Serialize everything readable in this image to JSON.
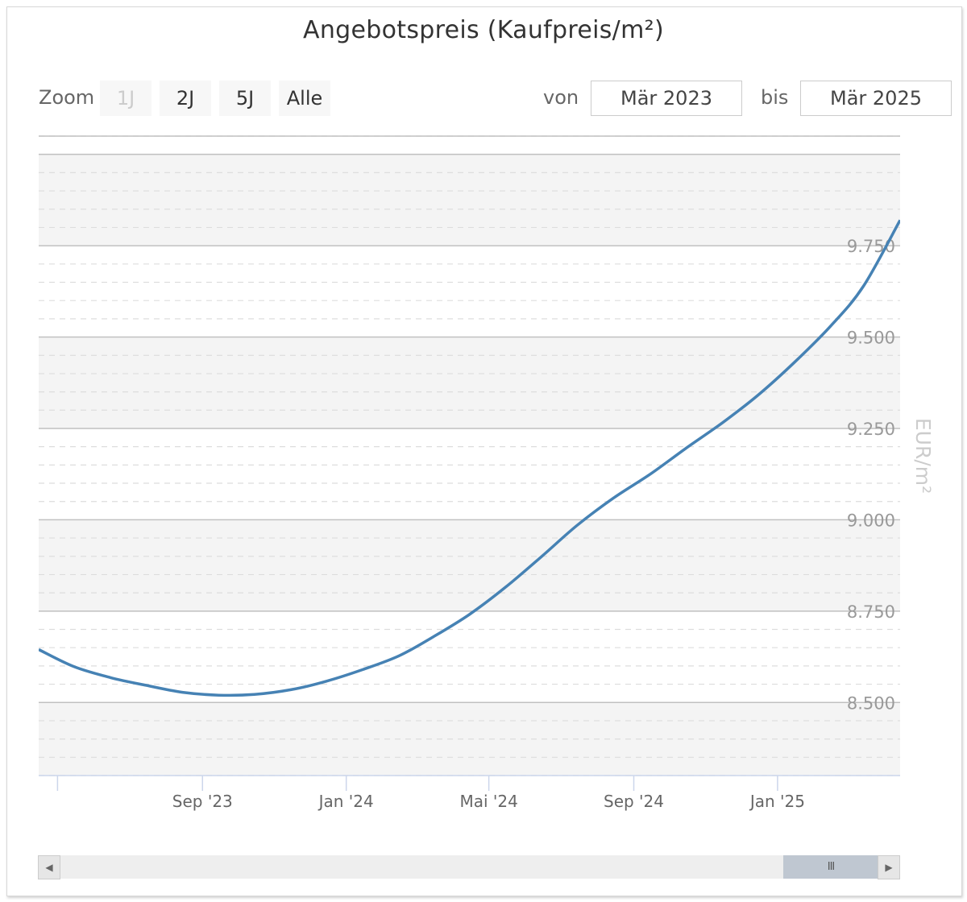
{
  "title": "Angebotspreis (Kaufpreis/m²)",
  "zoom": {
    "label": "Zoom",
    "buttons": [
      {
        "label": "1J",
        "disabled": true
      },
      {
        "label": "2J",
        "disabled": false
      },
      {
        "label": "5J",
        "disabled": false
      },
      {
        "label": "Alle",
        "disabled": false
      }
    ]
  },
  "range": {
    "from_label": "von",
    "from_value": "Mär 2023",
    "to_label": "bis",
    "to_value": "Mär 2025"
  },
  "navigator": {
    "thumb_glyph": "III",
    "left_arrow": "left-arrow-icon",
    "right_arrow": "right-arrow-icon"
  },
  "colors": {
    "line": "#4682b4",
    "band": "#f4f4f4",
    "grid": "#c0c0c0"
  },
  "chart_data": {
    "type": "line",
    "title": "Angebotspreis (Kaufpreis/m²)",
    "ylabel": "EUR/m²",
    "xlabel": "",
    "ylim": [
      8300,
      10050
    ],
    "yticks": [
      8500,
      8750,
      9000,
      9250,
      9500,
      9750
    ],
    "ytick_labels": [
      "8.500",
      "8.750",
      "9.000",
      "9.250",
      "9.500",
      "9.750"
    ],
    "xlim": [
      "2023-04-15",
      "2025-04-15"
    ],
    "xticks": [
      "2023-05-01",
      "2023-09-01",
      "2024-01-01",
      "2024-05-01",
      "2024-09-01",
      "2025-01-01"
    ],
    "xtick_labels": [
      "",
      "Sep '23",
      "Jan '24",
      "Mai '24",
      "Sep '24",
      "Jan '25"
    ],
    "series": [
      {
        "x": [
          "2023-04-15",
          "2023-05-15",
          "2023-06-15",
          "2023-07-15",
          "2023-08-15",
          "2023-09-15",
          "2023-10-15",
          "2023-11-15",
          "2023-12-15",
          "2024-01-15",
          "2024-02-15",
          "2024-03-15",
          "2024-04-15",
          "2024-05-15",
          "2024-06-15",
          "2024-07-15",
          "2024-08-15",
          "2024-09-15",
          "2024-10-15",
          "2024-11-15",
          "2024-12-15",
          "2025-01-15",
          "2025-02-15",
          "2025-03-15",
          "2025-04-15"
        ],
        "values": [
          8645,
          8598,
          8568,
          8547,
          8528,
          8520,
          8522,
          8535,
          8558,
          8590,
          8628,
          8680,
          8742,
          8815,
          8900,
          8985,
          9060,
          9125,
          9195,
          9265,
          9340,
          9430,
          9530,
          9640,
          9820
        ]
      }
    ]
  }
}
